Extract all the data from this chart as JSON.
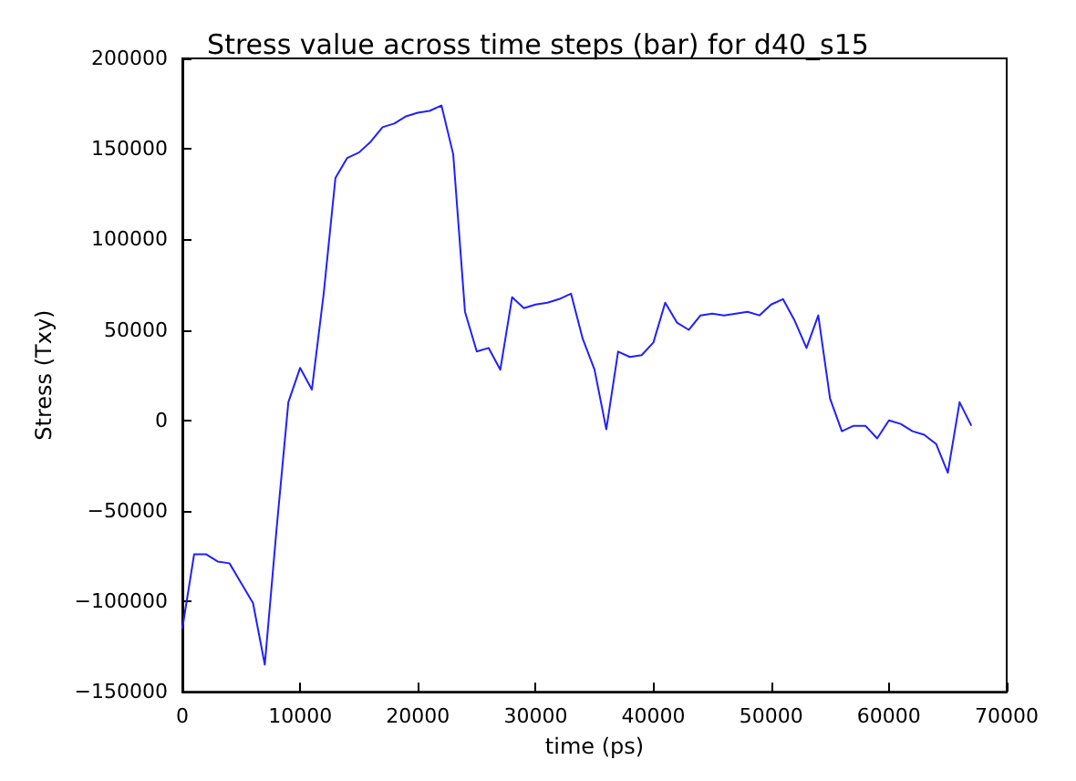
{
  "chart_data": {
    "type": "line",
    "title": "Stress value across time steps (bar) for d40_s15",
    "xlabel": "time (ps)",
    "ylabel": "Stress (Txy)",
    "x": [
      0,
      1000,
      2000,
      3000,
      4000,
      5000,
      6000,
      7000,
      8000,
      9000,
      10000,
      11000,
      12000,
      13000,
      14000,
      15000,
      16000,
      17000,
      18000,
      19000,
      20000,
      21000,
      22000,
      23000,
      24000,
      25000,
      26000,
      27000,
      28000,
      29000,
      30000,
      31000,
      32000,
      33000,
      34000,
      35000,
      36000,
      37000,
      38000,
      39000,
      40000,
      41000,
      42000,
      43000,
      44000,
      45000,
      46000,
      47000,
      48000,
      49000,
      50000,
      51000,
      52000,
      53000,
      54000,
      55000,
      56000,
      57000,
      58000,
      59000,
      60000,
      61000,
      62000,
      63000,
      64000,
      65000,
      66000,
      67000
    ],
    "series": [
      {
        "color": "#2020ff",
        "values": [
          -115000,
          -74000,
          -74000,
          -78000,
          -79000,
          -90000,
          -101000,
          -135000,
          -60000,
          10000,
          29000,
          17000,
          70000,
          134000,
          145000,
          148000,
          154000,
          162000,
          164000,
          168000,
          170000,
          171000,
          174000,
          147000,
          60000,
          38000,
          40000,
          28000,
          68000,
          62000,
          64000,
          65000,
          67000,
          70000,
          45000,
          28000,
          -5000,
          38000,
          35000,
          36000,
          43000,
          65000,
          54000,
          50000,
          58000,
          59000,
          58000,
          59000,
          60000,
          58000,
          64000,
          67000,
          55000,
          40000,
          58000,
          12000,
          -6000,
          -3000,
          -3000,
          -10000,
          0,
          -2000,
          -6000,
          -8000,
          -13000,
          -29000,
          10000,
          -3000
        ]
      }
    ],
    "xlim": [
      0,
      70000
    ],
    "xticks": [
      0,
      10000,
      20000,
      30000,
      40000,
      50000,
      60000,
      70000
    ],
    "ylim": [
      -150000,
      200000
    ],
    "yticks": [
      -150000,
      -100000,
      -50000,
      0,
      50000,
      100000,
      150000,
      200000
    ],
    "grid": false,
    "marker": "none",
    "line_style": "solid"
  }
}
